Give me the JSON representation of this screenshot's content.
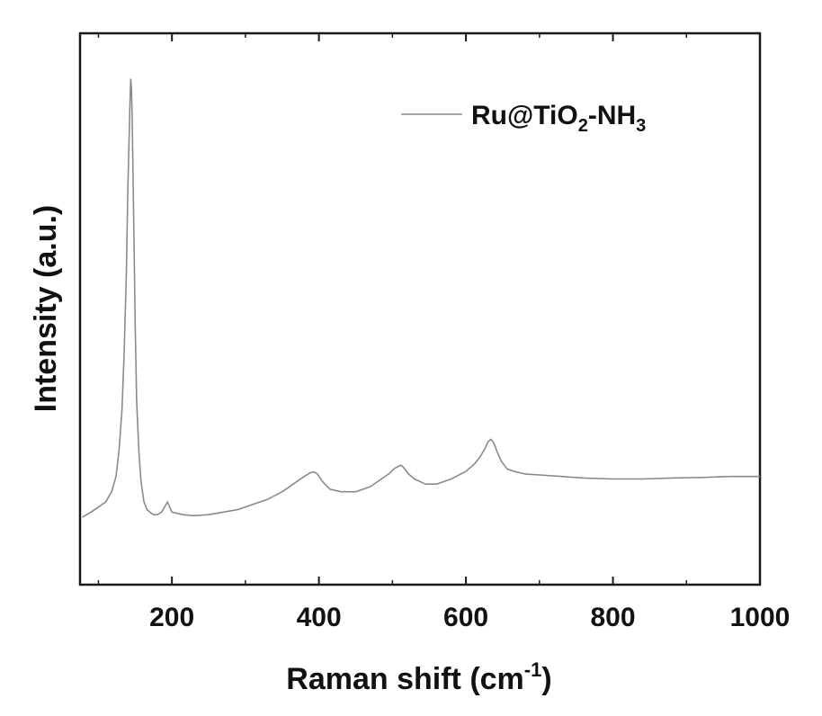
{
  "chart_data": {
    "type": "line",
    "title": "",
    "xlabel": {
      "main": "Raman shift (cm",
      "sup": "-1",
      "close": ")"
    },
    "ylabel": "Intensity (a.u.)",
    "xlim": [
      75,
      1000
    ],
    "ylim": [
      0,
      100
    ],
    "x_ticks": [
      200,
      400,
      600,
      800,
      1000
    ],
    "y_ticks_shown": false,
    "grid": false,
    "legend": {
      "placement": "top-right",
      "entries": [
        {
          "parts": [
            {
              "text": "Ru@TiO",
              "style": "normal"
            },
            {
              "text": "2",
              "style": "sub"
            },
            {
              "text": "-NH",
              "style": "normal"
            },
            {
              "text": "3",
              "style": "sub"
            }
          ]
        }
      ]
    },
    "series": [
      {
        "name": "Ru@TiO2-NH3",
        "color": "#8a8a8a",
        "x": [
          78,
          90,
          100,
          110,
          118,
          124,
          128,
          132,
          135,
          138,
          140,
          142,
          143,
          144,
          145,
          146,
          148,
          150,
          152,
          155,
          158,
          162,
          166,
          170,
          175,
          180,
          186,
          190,
          194,
          197,
          200,
          206,
          215,
          230,
          250,
          270,
          290,
          310,
          330,
          350,
          365,
          380,
          388,
          393,
          398,
          405,
          415,
          430,
          450,
          470,
          485,
          495,
          502,
          508,
          512,
          516,
          522,
          530,
          545,
          560,
          580,
          600,
          612,
          620,
          626,
          630,
          634,
          638,
          642,
          648,
          656,
          665,
          680,
          700,
          730,
          760,
          800,
          840,
          880,
          920,
          960,
          1000
        ],
        "y": [
          14,
          15,
          16,
          17,
          19,
          22,
          27,
          35,
          46,
          62,
          78,
          90,
          96,
          100,
          98,
          92,
          72,
          52,
          37,
          27,
          21,
          17,
          15.5,
          15,
          14.5,
          14.5,
          15,
          16,
          17,
          16,
          15,
          14.8,
          14.5,
          14.3,
          14.5,
          15,
          15.5,
          16.5,
          17.5,
          19,
          20.5,
          22,
          22.7,
          22.9,
          22.5,
          21,
          19.5,
          19,
          19,
          20,
          21.5,
          22.5,
          23.5,
          24,
          24.2,
          23.6,
          22.5,
          21.5,
          20.5,
          20.5,
          21.5,
          23,
          24.5,
          26,
          27.5,
          28.8,
          29.3,
          28.6,
          27,
          25,
          23.5,
          23,
          22.5,
          22.3,
          22,
          21.7,
          21.5,
          21.5,
          21.7,
          21.8,
          22,
          22
        ]
      }
    ]
  }
}
